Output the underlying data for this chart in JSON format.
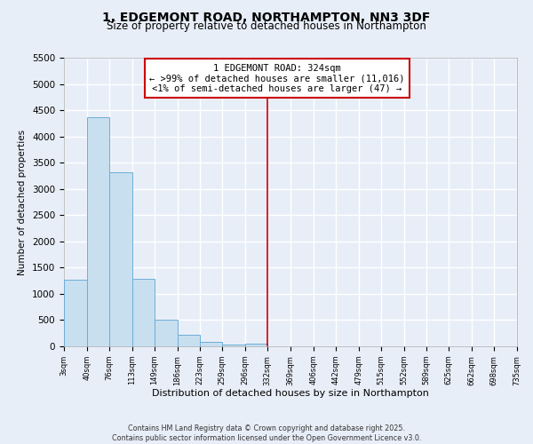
{
  "title": "1, EDGEMONT ROAD, NORTHAMPTON, NN3 3DF",
  "subtitle": "Size of property relative to detached houses in Northampton",
  "xlabel": "Distribution of detached houses by size in Northampton",
  "ylabel": "Number of detached properties",
  "bin_edges": [
    3,
    40,
    76,
    113,
    149,
    186,
    223,
    259,
    296,
    332,
    369,
    406,
    442,
    479,
    515,
    552,
    589,
    625,
    662,
    698,
    735
  ],
  "bar_heights": [
    1270,
    4360,
    3310,
    1280,
    500,
    220,
    80,
    30,
    50,
    0,
    0,
    0,
    0,
    0,
    0,
    0,
    0,
    0,
    0,
    0
  ],
  "bar_color": "#c8dff0",
  "bar_edge_color": "#6baed6",
  "vline_x": 332,
  "vline_color": "#cc0000",
  "annotation_lines": [
    "1 EDGEMONT ROAD: 324sqm",
    "← >99% of detached houses are smaller (11,016)",
    "<1% of semi-detached houses are larger (47) →"
  ],
  "ylim": [
    0,
    5500
  ],
  "yticks": [
    0,
    500,
    1000,
    1500,
    2000,
    2500,
    3000,
    3500,
    4000,
    4500,
    5000,
    5500
  ],
  "background_color": "#e8eef8",
  "grid_color": "#ffffff",
  "footer_line1": "Contains HM Land Registry data © Crown copyright and database right 2025.",
  "footer_line2": "Contains public sector information licensed under the Open Government Licence v3.0."
}
